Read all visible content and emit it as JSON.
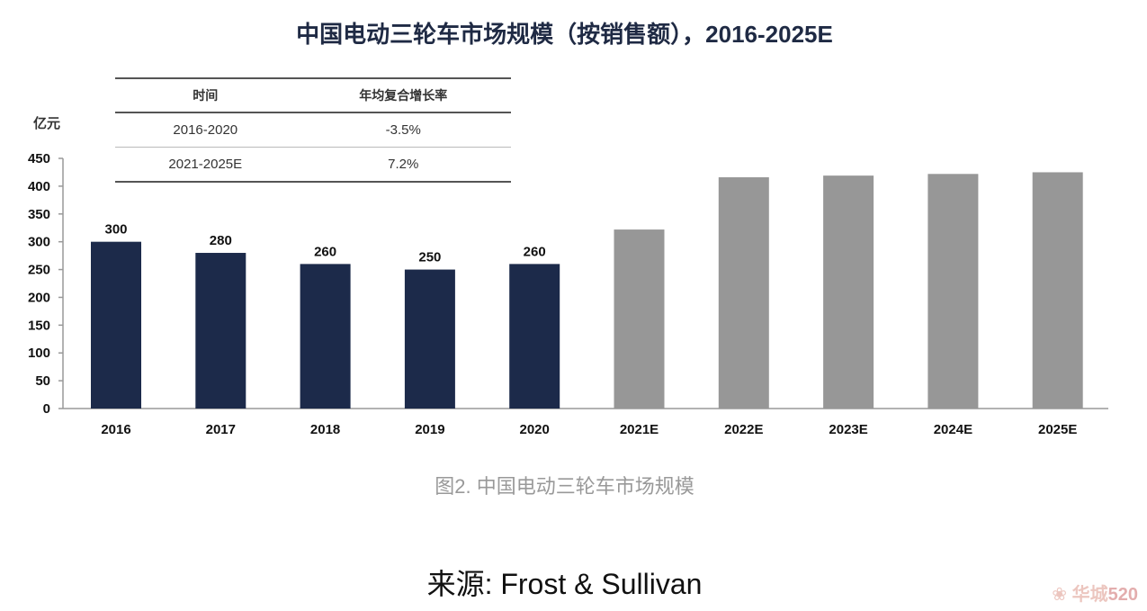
{
  "chart_data": {
    "type": "bar",
    "title": "中国电动三轮车市场规模（按销售额），2016-2025E",
    "ylabel": "亿元",
    "xlabel": "",
    "ylim": [
      0,
      450
    ],
    "yticks": [
      0,
      50,
      100,
      150,
      200,
      250,
      300,
      350,
      400,
      450
    ],
    "grid": false,
    "categories": [
      "2016",
      "2017",
      "2018",
      "2019",
      "2020",
      "2021E",
      "2022E",
      "2023E",
      "2024E",
      "2025E"
    ],
    "values": [
      300,
      280,
      260,
      250,
      260,
      322,
      416,
      419,
      422,
      425
    ],
    "data_labels": [
      "300",
      "280",
      "260",
      "250",
      "260",
      "",
      "",
      "",
      "",
      ""
    ],
    "colors": {
      "actual": "#1c2a4a",
      "forecast": "#979797"
    },
    "table": {
      "headers": [
        "时间",
        "年均复合增长率"
      ],
      "rows": [
        [
          "2016-2020",
          "-3.5%"
        ],
        [
          "2021-2025E",
          "7.2%"
        ]
      ]
    }
  },
  "caption": "图2. 中国电动三轮车市场规模",
  "source": "来源: Frost & Sullivan",
  "watermark": "华城520"
}
